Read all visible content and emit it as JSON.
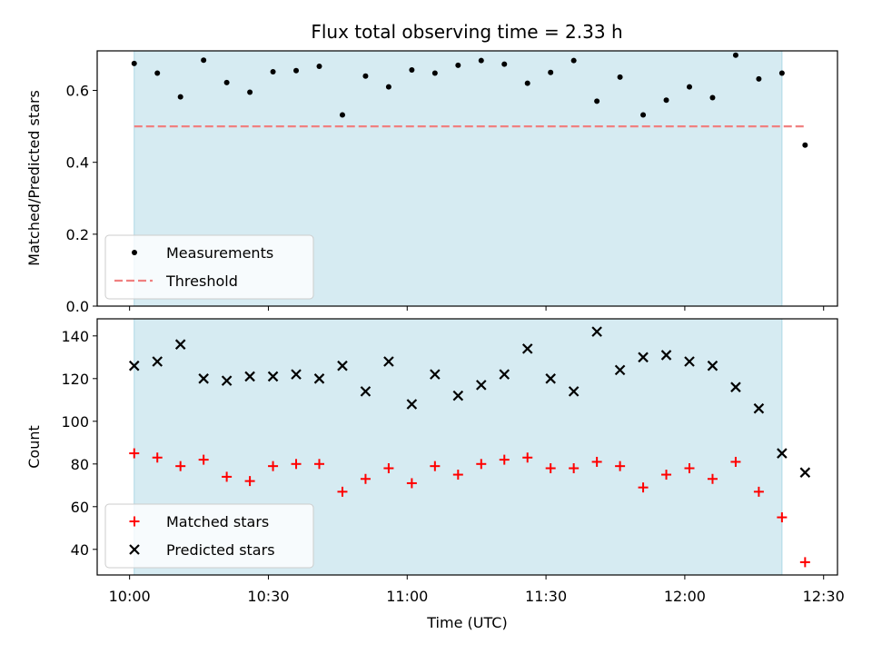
{
  "title": "Flux total observing time = 2.33 h",
  "colors": {
    "observing_span": "#add8e6",
    "measurement": "#000000",
    "threshold": "#f08080",
    "matched": "#ff0000",
    "predicted": "#000000"
  },
  "chart_data": [
    {
      "type": "scatter",
      "ylabel": "Matched/Predicted stars",
      "xlabel": "",
      "ylim": [
        0,
        0.71
      ],
      "y_ticks": [
        "0.0",
        "0.2",
        "0.4",
        "0.6"
      ],
      "x": [
        "10:01",
        "10:06",
        "10:11",
        "10:16",
        "10:21",
        "10:26",
        "10:31",
        "10:36",
        "10:41",
        "10:46",
        "10:51",
        "10:56",
        "11:01",
        "11:06",
        "11:11",
        "11:16",
        "11:21",
        "11:26",
        "11:31",
        "11:36",
        "11:41",
        "11:46",
        "11:51",
        "11:56",
        "12:01",
        "12:06",
        "12:11",
        "12:16",
        "12:21",
        "12:26"
      ],
      "series": [
        {
          "name": "Measurements",
          "marker": "dot",
          "values": [
            0.675,
            0.648,
            0.582,
            0.684,
            0.622,
            0.595,
            0.652,
            0.655,
            0.667,
            0.532,
            0.64,
            0.61,
            0.657,
            0.648,
            0.67,
            0.683,
            0.673,
            0.62,
            0.65,
            0.683,
            0.57,
            0.637,
            0.532,
            0.573,
            0.61,
            0.58,
            0.698,
            0.632,
            0.648,
            0.448
          ]
        },
        {
          "name": "Threshold",
          "marker": "dashed-line",
          "x": [
            "10:01",
            "12:26"
          ],
          "values": [
            0.5,
            0.5
          ]
        }
      ],
      "observing_span": [
        "10:01",
        "12:21"
      ],
      "legend_position": "lower-left"
    },
    {
      "type": "scatter",
      "ylabel": "Count",
      "xlabel": "Time (UTC)",
      "ylim": [
        28,
        148
      ],
      "y_ticks": [
        "40",
        "60",
        "80",
        "100",
        "120",
        "140"
      ],
      "x_ticks": [
        "10:00",
        "10:30",
        "11:00",
        "11:30",
        "12:00",
        "12:30"
      ],
      "x": [
        "10:01",
        "10:06",
        "10:11",
        "10:16",
        "10:21",
        "10:26",
        "10:31",
        "10:36",
        "10:41",
        "10:46",
        "10:51",
        "10:56",
        "11:01",
        "11:06",
        "11:11",
        "11:16",
        "11:21",
        "11:26",
        "11:31",
        "11:36",
        "11:41",
        "11:46",
        "11:51",
        "11:56",
        "12:01",
        "12:06",
        "12:11",
        "12:16",
        "12:21",
        "12:26"
      ],
      "series": [
        {
          "name": "Matched stars",
          "marker": "plus",
          "values": [
            85,
            83,
            79,
            82,
            74,
            72,
            79,
            80,
            80,
            67,
            73,
            78,
            71,
            79,
            75,
            80,
            82,
            83,
            78,
            78,
            81,
            79,
            69,
            75,
            78,
            73,
            81,
            67,
            55,
            34
          ]
        },
        {
          "name": "Predicted stars",
          "marker": "x",
          "values": [
            126,
            128,
            136,
            120,
            119,
            121,
            121,
            122,
            120,
            126,
            114,
            128,
            108,
            122,
            112,
            117,
            122,
            134,
            120,
            114,
            142,
            124,
            130,
            131,
            128,
            126,
            116,
            106,
            85,
            76
          ]
        }
      ],
      "observing_span": [
        "10:01",
        "12:21"
      ],
      "legend_position": "lower-left"
    }
  ]
}
